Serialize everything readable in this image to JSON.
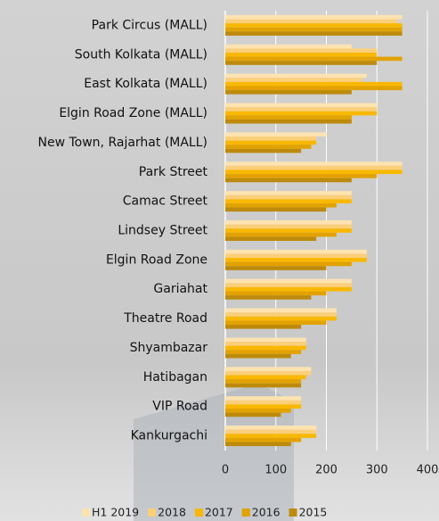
{
  "chart_data": {
    "type": "hbar",
    "categories": [
      "Park Circus (MALL)",
      "South Kolkata (MALL)",
      "East Kolkata (MALL)",
      "Elgin Road Zone (MALL)",
      "New Town, Rajarhat (MALL)",
      "Park Street",
      "Camac Street",
      "Lindsey Street",
      "Elgin Road Zone",
      "Gariahat",
      "Theatre Road",
      "Shyambazar",
      "Hatibagan",
      "VIP Road",
      "Kankurgachi"
    ],
    "series": [
      {
        "name": "H1 2019",
        "color": "#fde3b0",
        "values": [
          350,
          250,
          280,
          300,
          200,
          350,
          250,
          250,
          280,
          250,
          220,
          160,
          170,
          150,
          180
        ]
      },
      {
        "name": "2018",
        "color": "#fbcf7a",
        "values": [
          340,
          300,
          270,
          300,
          180,
          350,
          250,
          250,
          280,
          250,
          220,
          160,
          170,
          150,
          180
        ]
      },
      {
        "name": "2017",
        "color": "#f9b800",
        "values": [
          350,
          300,
          350,
          300,
          180,
          350,
          250,
          250,
          280,
          250,
          220,
          160,
          160,
          150,
          180
        ]
      },
      {
        "name": "2016",
        "color": "#e2a200",
        "values": [
          350,
          350,
          350,
          250,
          170,
          300,
          220,
          220,
          250,
          200,
          200,
          150,
          150,
          130,
          150
        ]
      },
      {
        "name": "2015",
        "color": "#bd8a0c",
        "values": [
          350,
          300,
          250,
          250,
          150,
          250,
          200,
          180,
          200,
          170,
          150,
          130,
          150,
          110,
          130
        ]
      }
    ],
    "xlim": [
      0,
      400
    ],
    "xticks": [
      0,
      100,
      200,
      300,
      400
    ],
    "grid": true
  }
}
